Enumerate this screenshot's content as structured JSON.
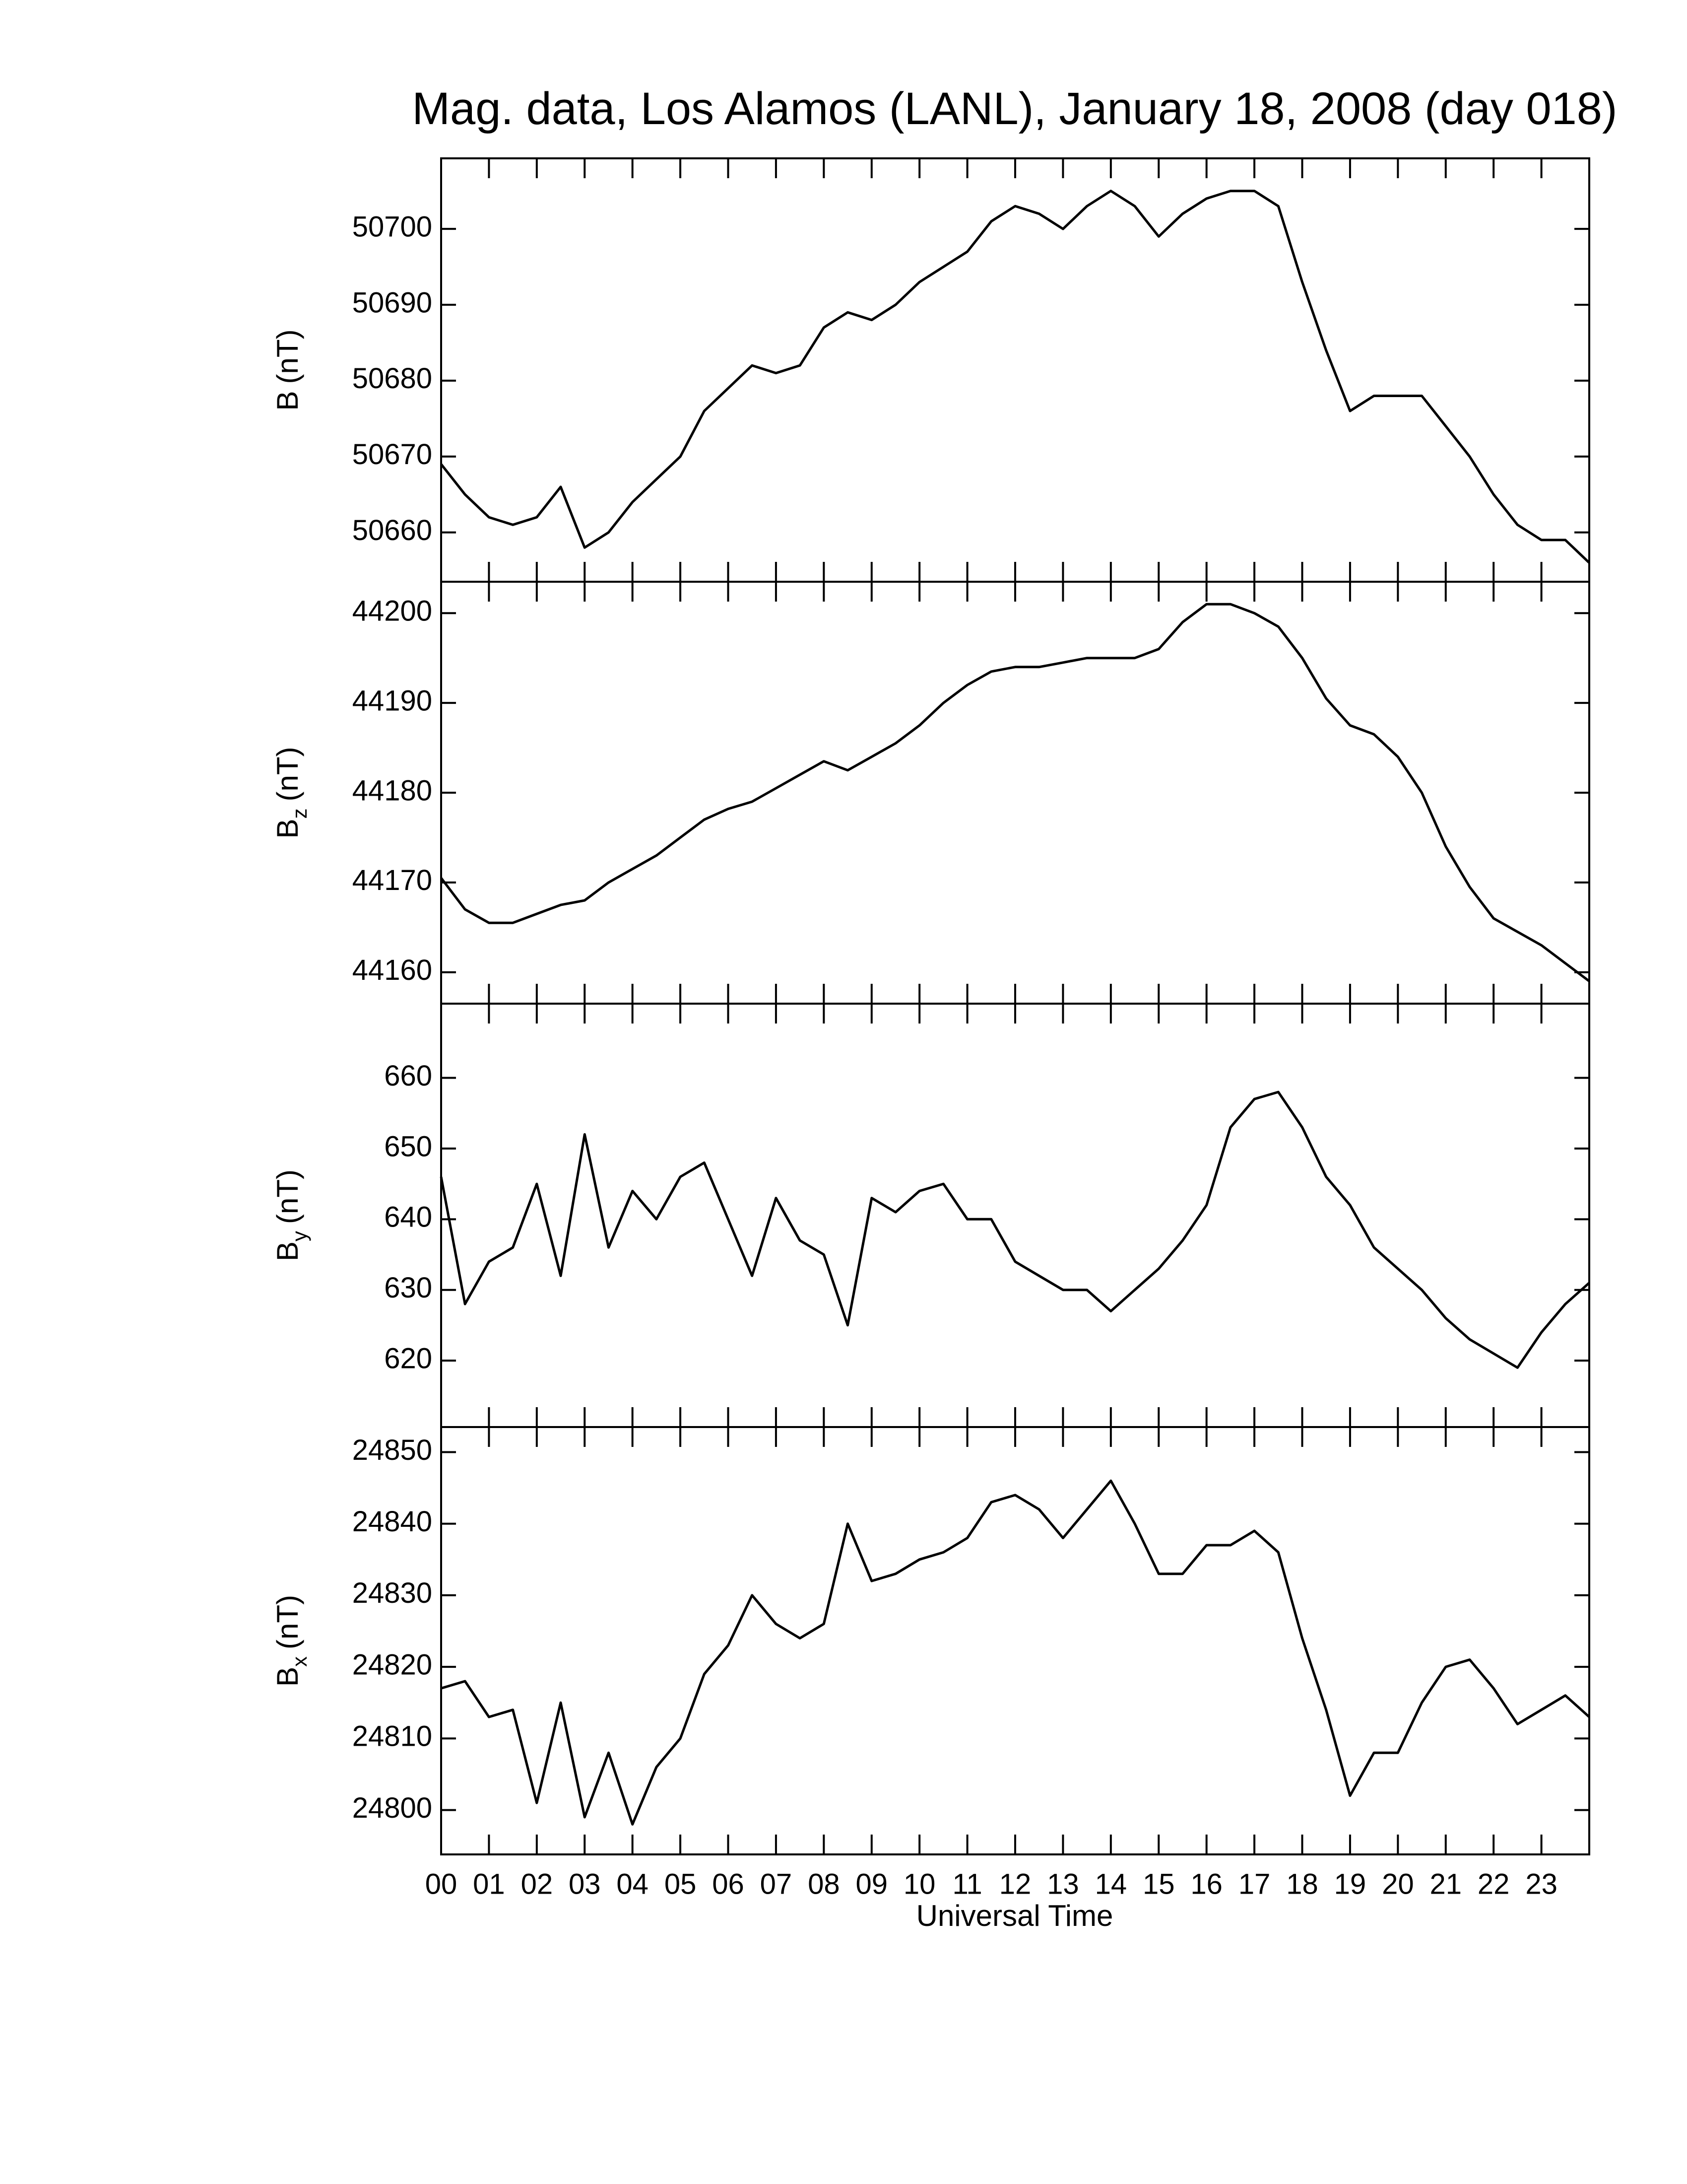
{
  "chart_data": {
    "type": "line",
    "title": "Mag. data, Los Alamos (LANL), January 18, 2008 (day 018)",
    "xlabel": "Universal Time",
    "xlim": [
      0,
      24
    ],
    "xticks": [
      {
        "value": 0,
        "label": "00"
      },
      {
        "value": 1,
        "label": "01"
      },
      {
        "value": 2,
        "label": "02"
      },
      {
        "value": 3,
        "label": "03"
      },
      {
        "value": 4,
        "label": "04"
      },
      {
        "value": 5,
        "label": "05"
      },
      {
        "value": 6,
        "label": "06"
      },
      {
        "value": 7,
        "label": "07"
      },
      {
        "value": 8,
        "label": "08"
      },
      {
        "value": 9,
        "label": "09"
      },
      {
        "value": 10,
        "label": "10"
      },
      {
        "value": 11,
        "label": "11"
      },
      {
        "value": 12,
        "label": "12"
      },
      {
        "value": 13,
        "label": "13"
      },
      {
        "value": 14,
        "label": "14"
      },
      {
        "value": 15,
        "label": "15"
      },
      {
        "value": 16,
        "label": "16"
      },
      {
        "value": 17,
        "label": "17"
      },
      {
        "value": 18,
        "label": "18"
      },
      {
        "value": 19,
        "label": "19"
      },
      {
        "value": 20,
        "label": "20"
      },
      {
        "value": 21,
        "label": "21"
      },
      {
        "value": 22,
        "label": "22"
      },
      {
        "value": 23,
        "label": "23"
      }
    ],
    "x": [
      0,
      0.5,
      1,
      1.5,
      2,
      2.5,
      3,
      3.5,
      4,
      4.5,
      5,
      5.5,
      6,
      6.5,
      7,
      7.5,
      8,
      8.5,
      9,
      9.5,
      10,
      10.5,
      11,
      11.5,
      12,
      12.5,
      13,
      13.5,
      14,
      14.5,
      15,
      15.5,
      16,
      16.5,
      17,
      17.5,
      18,
      18.5,
      19,
      19.5,
      20,
      20.5,
      21,
      21.5,
      22,
      22.5,
      23,
      23.5,
      24
    ],
    "color": "#000000",
    "panels": [
      {
        "ylabel": {
          "symbol": "B",
          "unit": "(nT)"
        },
        "ylim": [
          50653.5,
          50709.3
        ],
        "yticks": [
          50660,
          50670,
          50680,
          50690,
          50700
        ],
        "values": [
          50669,
          50665,
          50662,
          50661,
          50662,
          50666,
          50658,
          50660,
          50664,
          50667,
          50670,
          50676,
          50679,
          50682,
          50681,
          50682,
          50687,
          50689,
          50688,
          50690,
          50693,
          50695,
          50697,
          50701,
          50703,
          50702,
          50700,
          50703,
          50705,
          50703,
          50699,
          50702,
          50704,
          50705,
          50705,
          50703,
          50693,
          50684,
          50676,
          50678,
          50678,
          50678,
          50674,
          50670,
          50665,
          50661,
          50659,
          50659,
          50656
        ]
      },
      {
        "ylabel": {
          "symbol": "B",
          "subscript": "z",
          "unit": "(nT)"
        },
        "ylim": [
          44156.5,
          44203.5
        ],
        "yticks": [
          44160,
          44170,
          44180,
          44190,
          44200
        ],
        "values": [
          44170.5,
          44167,
          44165.5,
          44165.5,
          44166.5,
          44167.5,
          44168,
          44170,
          44171.5,
          44173,
          44175,
          44177,
          44178.2,
          44179,
          44180.5,
          44182,
          44183.5,
          44182.5,
          44184,
          44185.5,
          44187.5,
          44190,
          44192,
          44193.5,
          44194,
          44194,
          44194.5,
          44195,
          44195,
          44195,
          44196,
          44199,
          44201,
          44201,
          44200,
          44198.5,
          44195,
          44190.5,
          44187.5,
          44186.5,
          44184,
          44180,
          44174,
          44169.5,
          44166,
          44164.5,
          44163,
          44161,
          44159
        ]
      },
      {
        "ylabel": {
          "symbol": "B",
          "subscript": "y",
          "unit": "(nT)"
        },
        "ylim": [
          610.6,
          670.5
        ],
        "yticks": [
          620,
          630,
          640,
          650,
          660
        ],
        "values": [
          646,
          628,
          634,
          636,
          645,
          632,
          652,
          636,
          644,
          640,
          646,
          648,
          640,
          632,
          643,
          637,
          635,
          625,
          643,
          641,
          644,
          645,
          640,
          640,
          634,
          632,
          630,
          630,
          627,
          630,
          633,
          637,
          642,
          653,
          657,
          658,
          653,
          646,
          642,
          636,
          633,
          630,
          626,
          623,
          621,
          619,
          624,
          628,
          631
        ]
      },
      {
        "ylabel": {
          "symbol": "B",
          "subscript": "x",
          "unit": "(nT)"
        },
        "ylim": [
          24793.8,
          24853.5
        ],
        "yticks": [
          24800,
          24810,
          24820,
          24830,
          24840,
          24850
        ],
        "values": [
          24817,
          24818,
          24813,
          24814,
          24801,
          24815,
          24799,
          24808,
          24798,
          24806,
          24810,
          24819,
          24823,
          24830,
          24826,
          24824,
          24826,
          24840,
          24832,
          24833,
          24835,
          24836,
          24838,
          24843,
          24844,
          24842,
          24838,
          24842,
          24846,
          24840,
          24833,
          24833,
          24837,
          24837,
          24839,
          24836,
          24824,
          24814,
          24802,
          24808,
          24808,
          24815,
          24820,
          24821,
          24817,
          24812,
          24814,
          24816,
          24813
        ]
      }
    ]
  }
}
